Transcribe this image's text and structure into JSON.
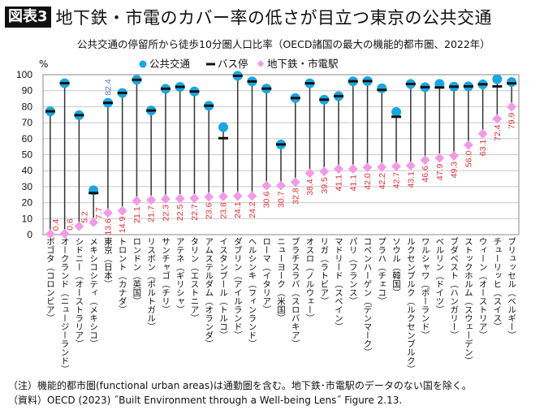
{
  "header": {
    "badge": "図表3",
    "title": "地下鉄・市電のカバー率の低さが目立つ東京の公共交通"
  },
  "chart_data": {
    "type": "dot-range",
    "title": "公共交通の停留所から徒歩10分圏人口比率（OECD諸国の最大の機能的都市圏、2022年）",
    "ylabel": "%",
    "ylim": [
      0,
      100
    ],
    "yticks": [
      0,
      10,
      20,
      30,
      40,
      50,
      60,
      70,
      80,
      90,
      100
    ],
    "grid": true,
    "legend_position": "top",
    "colors": {
      "transit": "#1aa6e0",
      "bus": "#111111",
      "rail": "#f29ae6",
      "rail_label": "#e0303a",
      "tokyo_label": "#5a7fc0",
      "stem": "#333333"
    },
    "categories": [
      "ボゴタ（コロンビア）",
      "オークランド（ニュージーランド）",
      "シドニー（オーストラリア）",
      "メキシコシティ（メキシコ）",
      "東京（日本）",
      "トロント（カナダ）",
      "ロンドン（英国）",
      "リスボン（ポルトガル）",
      "サンチャゴ（チリ）",
      "アテネ（ギリシャ）",
      "タリン（エストニア）",
      "アムステルダム（オランダ）",
      "イスタンブール（トルコ）",
      "ダブリン（アイルランド）",
      "ヘルシンキ（フィンランド）",
      "ローマ（イタリア）",
      "ニューヨーク（米国）",
      "ブラチスラバ（スロバキア）",
      "オスロ（ノルウェー）",
      "リガ（ラトビア）",
      "マドリード（スペイン）",
      "パリ（フランス）",
      "コペンハーゲン（デンマーク）",
      "プラハ（チェコ）",
      "ソウル（韓国）",
      "ルクセンブルク（ルクセンブルク）",
      "ワルシャワ（ポーランド）",
      "ベルリン（ドイツ）",
      "ブダペスト（ハンガリー）",
      "ストックホルム（スウェーデン）",
      "ウィーン（オーストリア）",
      "チューリッヒ（スイス）",
      "ブリュッセル（ベルギー）"
    ],
    "series": [
      {
        "name": "公共交通",
        "values": [
          77.1,
          94.7,
          74.7,
          27.7,
          82.4,
          88.6,
          96.8,
          77.6,
          91.2,
          92.4,
          89.5,
          80.6,
          67.2,
          99.3,
          95.8,
          91.3,
          56.4,
          85.4,
          94.6,
          84.4,
          86.6,
          95.9,
          96.0,
          91.5,
          76.7,
          94.2,
          92.2,
          94.2,
          92.5,
          92.7,
          94.0,
          97.2,
          95.4
        ]
      },
      {
        "name": "バス停",
        "values": [
          77.1,
          94.7,
          74.7,
          26.0,
          82.4,
          88.6,
          96.8,
          77.6,
          91.2,
          92.4,
          89.5,
          80.6,
          60.3,
          99.3,
          95.8,
          91.3,
          56.4,
          85.4,
          94.6,
          84.4,
          86.6,
          95.9,
          96.0,
          90.5,
          73.7,
          94.2,
          92.2,
          92.0,
          92.5,
          92.7,
          94.0,
          92.7,
          94.6
        ]
      },
      {
        "name": "地下鉄・市電駅",
        "values": [
          0.4,
          0.6,
          5.2,
          7.7,
          13.6,
          14.9,
          21.1,
          21.7,
          22.3,
          22.5,
          22.7,
          23.6,
          23.8,
          24.1,
          24.2,
          30.6,
          30.7,
          32.8,
          38.4,
          39.5,
          41.1,
          41.1,
          42.0,
          42.2,
          42.7,
          43.1,
          46.6,
          47.9,
          49.3,
          56.0,
          63.1,
          72.4,
          79.9
        ]
      }
    ],
    "annotations": [
      {
        "category": "東京（日本）",
        "text": "82.4"
      }
    ]
  },
  "notes": {
    "note": "（注）機能的都市圏(functional urban areas)は通勤圏を含む。地下鉄･市電駅のデータのない国を除く。",
    "source": "（資料）OECD (2023) ˝Built Environment through a Well-being Lens˝  Figure 2.13."
  }
}
